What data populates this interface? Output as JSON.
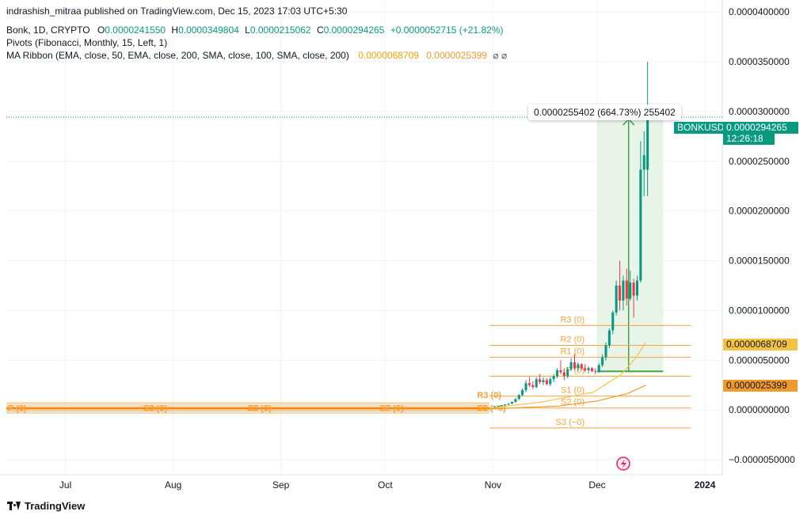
{
  "header": {
    "publisher": "indrashish_mitraa published on TradingView.com, Dec 15, 2023 17:03 UTC+5:30",
    "symbol": "Bonk, 1D, CRYPTO",
    "o_label": "O",
    "o_value": "0.0000241550",
    "h_label": "H",
    "h_value": "0.0000349804",
    "l_label": "L",
    "l_value": "0.0000215062",
    "c_label": "C",
    "c_value": "0.0000294265",
    "change": "+0.0000052715 (+21.82%)",
    "pivots": "Pivots (Fibonacci, Monthly, 15, Left, 1)",
    "ma_ribbon": "MA Ribbon (EMA, close, 50, EMA, close, 200, SMA, close, 100, SMA, close, 200)",
    "ma_value_1": "0.0000068709",
    "ma_value_2": "0.0000025399",
    "ma_icons": "⌀ ⌀"
  },
  "measure_label": "0.0000255402 (664.73%) 255402",
  "price_tag": {
    "symbol": "BONKUSD",
    "price": "0.0000294265",
    "countdown": "12:26:18"
  },
  "ma_tags": [
    "0.0000068709",
    "0.0000025399"
  ],
  "brand": "TradingView",
  "colors": {
    "up": "#089981",
    "down": "#f23645",
    "pivot": "#f7a23b",
    "ma1": "#f5c343",
    "ma2": "#f09a2c",
    "measure_fill": "#e4f2e4"
  },
  "chart_data": {
    "type": "candlestick",
    "x_start": "2023-06-14",
    "x_end": "2024-01-06",
    "ylim": [
      -6.5e-06,
      4.12e-05
    ],
    "y_ticks": [
      "0.0000400000",
      "0.0000350000",
      "0.0000300000",
      "0.0000250000",
      "0.0000200000",
      "0.0000150000",
      "0.0000100000",
      "0.0000050000",
      "0.0000000000",
      "−0.0000050000"
    ],
    "y_tick_values": [
      4e-05,
      3.5e-05,
      3e-05,
      2.5e-05,
      2e-05,
      1.5e-05,
      1e-05,
      5e-06,
      0,
      -5e-06
    ],
    "x_ticks": [
      {
        "label": "Jul",
        "date": "2023-07-01"
      },
      {
        "label": "Aug",
        "date": "2023-08-01"
      },
      {
        "label": "Sep",
        "date": "2023-09-01"
      },
      {
        "label": "Oct",
        "date": "2023-10-01"
      },
      {
        "label": "Nov",
        "date": "2023-11-01"
      },
      {
        "label": "Dec",
        "date": "2023-12-01"
      },
      {
        "label": "2024",
        "date": "2024-01-01"
      }
    ],
    "candles": [
      {
        "d": "2023-11-01",
        "o": 3.2e-07,
        "h": 4e-07,
        "l": 3e-07,
        "c": 3.8e-07
      },
      {
        "d": "2023-11-02",
        "o": 3.8e-07,
        "h": 4.5e-07,
        "l": 3.4e-07,
        "c": 4.2e-07
      },
      {
        "d": "2023-11-03",
        "o": 4.2e-07,
        "h": 5e-07,
        "l": 3.8e-07,
        "c": 4.7e-07
      },
      {
        "d": "2023-11-04",
        "o": 4.7e-07,
        "h": 5.8e-07,
        "l": 4.4e-07,
        "c": 5.5e-07
      },
      {
        "d": "2023-11-05",
        "o": 5.5e-07,
        "h": 6.8e-07,
        "l": 5e-07,
        "c": 6.4e-07
      },
      {
        "d": "2023-11-06",
        "o": 6.4e-07,
        "h": 8.5e-07,
        "l": 6e-07,
        "c": 8e-07
      },
      {
        "d": "2023-11-07",
        "o": 8e-07,
        "h": 1.2e-06,
        "l": 7.5e-07,
        "c": 1.1e-06
      },
      {
        "d": "2023-11-08",
        "o": 1.1e-06,
        "h": 1.6e-06,
        "l": 1e-06,
        "c": 1.5e-06
      },
      {
        "d": "2023-11-09",
        "o": 1.5e-06,
        "h": 2.2e-06,
        "l": 1.4e-06,
        "c": 2e-06
      },
      {
        "d": "2023-11-10",
        "o": 2e-06,
        "h": 3e-06,
        "l": 1.8e-06,
        "c": 2.7e-06
      },
      {
        "d": "2023-11-11",
        "o": 2.7e-06,
        "h": 3.3e-06,
        "l": 2.3e-06,
        "c": 2.5e-06
      },
      {
        "d": "2023-11-12",
        "o": 2.5e-06,
        "h": 2.9e-06,
        "l": 2.1e-06,
        "c": 2.3e-06
      },
      {
        "d": "2023-11-13",
        "o": 2.3e-06,
        "h": 3.3e-06,
        "l": 2.2e-06,
        "c": 3.1e-06
      },
      {
        "d": "2023-11-14",
        "o": 3.1e-06,
        "h": 3.6e-06,
        "l": 2.6e-06,
        "c": 2.8e-06
      },
      {
        "d": "2023-11-15",
        "o": 2.8e-06,
        "h": 3.3e-06,
        "l": 2.5e-06,
        "c": 3e-06
      },
      {
        "d": "2023-11-16",
        "o": 3e-06,
        "h": 3.2e-06,
        "l": 2.5e-06,
        "c": 2.6e-06
      },
      {
        "d": "2023-11-17",
        "o": 2.6e-06,
        "h": 3.3e-06,
        "l": 2.4e-06,
        "c": 3.1e-06
      },
      {
        "d": "2023-11-18",
        "o": 3.1e-06,
        "h": 3.6e-06,
        "l": 2.8e-06,
        "c": 3.4e-06
      },
      {
        "d": "2023-11-19",
        "o": 3.4e-06,
        "h": 4.2e-06,
        "l": 3.2e-06,
        "c": 4e-06
      },
      {
        "d": "2023-11-20",
        "o": 4e-06,
        "h": 5e-06,
        "l": 3.6e-06,
        "c": 3.8e-06
      },
      {
        "d": "2023-11-21",
        "o": 3.8e-06,
        "h": 4.2e-06,
        "l": 3e-06,
        "c": 3.4e-06
      },
      {
        "d": "2023-11-22",
        "o": 3.4e-06,
        "h": 4.3e-06,
        "l": 3.2e-06,
        "c": 4.1e-06
      },
      {
        "d": "2023-11-23",
        "o": 4.1e-06,
        "h": 5.2e-06,
        "l": 3.9e-06,
        "c": 4.8e-06
      },
      {
        "d": "2023-11-24",
        "o": 4.8e-06,
        "h": 5.6e-06,
        "l": 4e-06,
        "c": 4.2e-06
      },
      {
        "d": "2023-11-25",
        "o": 4.2e-06,
        "h": 4.8e-06,
        "l": 3.9e-06,
        "c": 4.6e-06
      },
      {
        "d": "2023-11-26",
        "o": 4.6e-06,
        "h": 4.7e-06,
        "l": 4e-06,
        "c": 4.2e-06
      },
      {
        "d": "2023-11-27",
        "o": 4.2e-06,
        "h": 4.6e-06,
        "l": 3.8e-06,
        "c": 4e-06
      },
      {
        "d": "2023-11-28",
        "o": 4e-06,
        "h": 4.4e-06,
        "l": 3.7e-06,
        "c": 4.2e-06
      },
      {
        "d": "2023-11-29",
        "o": 4.2e-06,
        "h": 4.3e-06,
        "l": 3.8e-06,
        "c": 3.9e-06
      },
      {
        "d": "2023-11-30",
        "o": 3.9e-06,
        "h": 4.2e-06,
        "l": 3.6e-06,
        "c": 3.84e-06
      },
      {
        "d": "2023-12-01",
        "o": 3.84e-06,
        "h": 4.7e-06,
        "l": 3.7e-06,
        "c": 4.5e-06
      },
      {
        "d": "2023-12-02",
        "o": 4.5e-06,
        "h": 5.6e-06,
        "l": 4.3e-06,
        "c": 5.3e-06
      },
      {
        "d": "2023-12-03",
        "o": 5.3e-06,
        "h": 6.8e-06,
        "l": 5e-06,
        "c": 6.5e-06
      },
      {
        "d": "2023-12-04",
        "o": 6.5e-06,
        "h": 8.2e-06,
        "l": 6.2e-06,
        "c": 8e-06
      },
      {
        "d": "2023-12-05",
        "o": 8e-06,
        "h": 1e-05,
        "l": 7.6e-06,
        "c": 9.8e-06
      },
      {
        "d": "2023-12-06",
        "o": 9.8e-06,
        "h": 1.3e-05,
        "l": 9.5e-06,
        "c": 1.25e-05
      },
      {
        "d": "2023-12-07",
        "o": 1.25e-05,
        "h": 1.5e-05,
        "l": 1e-05,
        "c": 1.1e-05
      },
      {
        "d": "2023-12-08",
        "o": 1.1e-05,
        "h": 1.35e-05,
        "l": 1e-05,
        "c": 1.3e-05
      },
      {
        "d": "2023-12-09",
        "o": 1.3e-05,
        "h": 1.42e-05,
        "l": 1.05e-05,
        "c": 1.12e-05
      },
      {
        "d": "2023-12-10",
        "o": 1.12e-05,
        "h": 1.4e-05,
        "l": 1.1e-05,
        "c": 1.28e-05
      },
      {
        "d": "2023-12-11",
        "o": 1.28e-05,
        "h": 1.32e-05,
        "l": 9.3e-06,
        "c": 1.15e-05
      },
      {
        "d": "2023-12-12",
        "o": 1.15e-05,
        "h": 1.35e-05,
        "l": 1.1e-05,
        "c": 1.3e-05
      },
      {
        "d": "2023-12-13",
        "o": 1.3e-05,
        "h": 2.7e-05,
        "l": 1.28e-05,
        "c": 2.415e-05
      },
      {
        "d": "2023-12-14",
        "o": 2.415e-05,
        "h": 2.8e-05,
        "l": 2.15e-05,
        "c": 2.56e-05
      },
      {
        "d": "2023-12-15",
        "o": 2.415e-05,
        "h": 3.498e-05,
        "l": 2.15e-05,
        "c": 2.943e-05
      }
    ],
    "pivot_levels": [
      {
        "label": "R3 (0)",
        "value": 8.5e-06
      },
      {
        "label": "R2 (0)",
        "value": 6.5e-06
      },
      {
        "label": "R1 (0)",
        "value": 5.3e-06
      },
      {
        "label": "P (0)",
        "value": 3.4e-06
      },
      {
        "label": "S1 (0)",
        "value": 1.4e-06
      },
      {
        "label": "S2 (0)",
        "value": 2e-07
      },
      {
        "label": "S3 (−0)",
        "value": -1.8e-06
      }
    ],
    "old_pivot_labels": [
      {
        "label": "P (0)",
        "date": "2023-06-14"
      },
      {
        "label": "S3 (0)",
        "date": "2023-07-23"
      },
      {
        "label": "S3 (0)",
        "date": "2023-08-22"
      },
      {
        "label": "S2 (0)",
        "date": "2023-09-29"
      },
      {
        "label": "R3 (0)",
        "date": "2023-10-27"
      },
      {
        "label": "S3 (−0)",
        "date": "2023-10-27"
      }
    ],
    "measure": {
      "from_date": "2023-12-01",
      "to_date": "2023-12-20",
      "from_value": 3.8863e-06,
      "to_value": 2.94265e-05
    },
    "last_price": 2.94265e-05
  }
}
